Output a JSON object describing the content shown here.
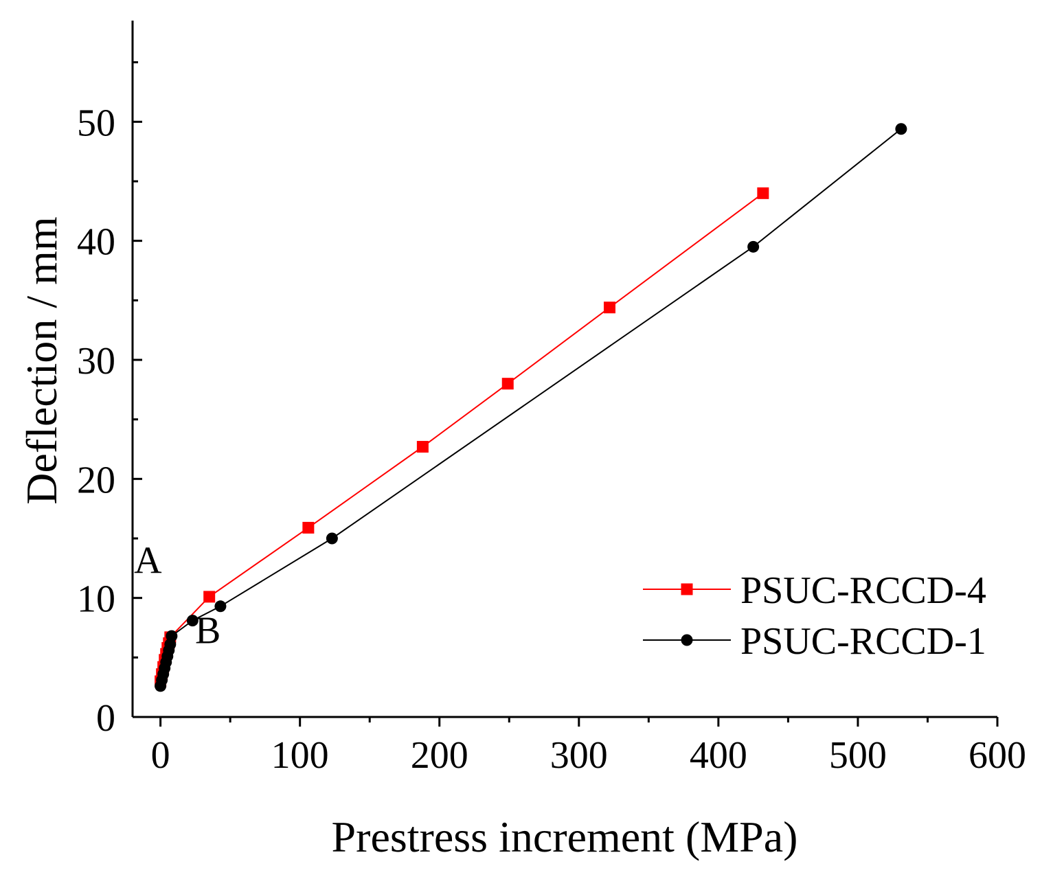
{
  "chart_data": {
    "type": "line",
    "title": "",
    "xlabel": "Prestress increment (MPa)",
    "ylabel": "Deflection / mm",
    "xlim": [
      -20,
      600
    ],
    "ylim": [
      0,
      58.5
    ],
    "xticks": [
      0,
      100,
      200,
      300,
      400,
      500,
      600
    ],
    "xtick_labels": [
      "0",
      "100",
      "200",
      "300",
      "400",
      "500",
      "600"
    ],
    "yticks": [
      0,
      10,
      20,
      30,
      40,
      50
    ],
    "ytick_labels": [
      "0",
      "10",
      "20",
      "30",
      "40",
      "50"
    ],
    "grid": false,
    "legend_position": "lower-right",
    "series": [
      {
        "name": "PSUC-RCCD-4",
        "color": "#ff0000",
        "marker": "square",
        "x": [
          0,
          1,
          2,
          3,
          4,
          5,
          6,
          7,
          35,
          106,
          188,
          249,
          322,
          432
        ],
        "y": [
          3.0,
          3.6,
          4.2,
          4.8,
          5.3,
          5.8,
          6.2,
          6.7,
          10.1,
          15.9,
          22.7,
          28.0,
          34.4,
          44.0
        ]
      },
      {
        "name": "PSUC-RCCD-1",
        "color": "#000000",
        "marker": "circle",
        "x": [
          0,
          1,
          2,
          3,
          4,
          5,
          6,
          7,
          8,
          23,
          43,
          123,
          425,
          531
        ],
        "y": [
          2.6,
          3.1,
          3.6,
          4.1,
          4.6,
          5.1,
          5.6,
          6.1,
          6.8,
          8.1,
          9.3,
          15.0,
          39.5,
          49.4
        ]
      }
    ],
    "annotations": [
      {
        "text": "A",
        "x": -9,
        "y": 12.1
      },
      {
        "text": "B",
        "x": 34,
        "y": 6.2
      }
    ]
  }
}
